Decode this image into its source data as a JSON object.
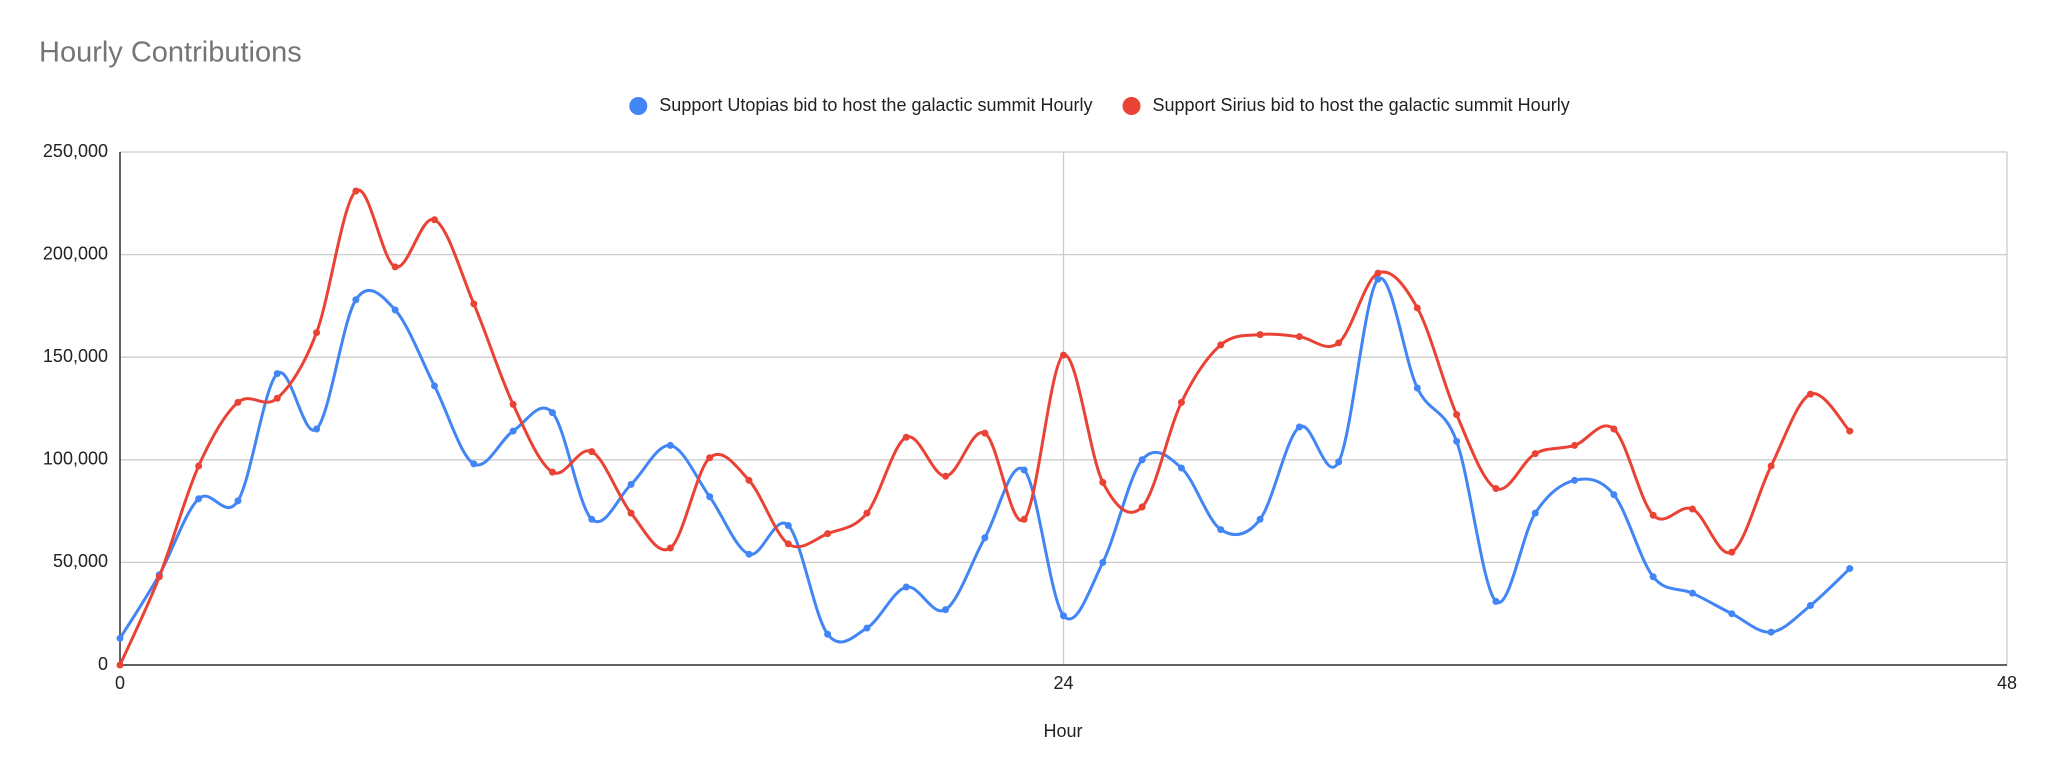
{
  "chart_data": {
    "type": "line",
    "title": "Hourly Contributions",
    "x_label": "Hour",
    "x": [
      0,
      1,
      2,
      3,
      4,
      5,
      6,
      7,
      8,
      9,
      10,
      11,
      12,
      13,
      14,
      15,
      16,
      17,
      18,
      19,
      20,
      21,
      22,
      23,
      24,
      25,
      26,
      27,
      28,
      29,
      30,
      31,
      32,
      33,
      34,
      35,
      36,
      37,
      38,
      39,
      40,
      41,
      42,
      43,
      44
    ],
    "series": [
      {
        "name": "Support Utopias bid to host the galactic summit Hourly",
        "color": "#4285f4",
        "values": [
          13000,
          44000,
          81000,
          80000,
          142000,
          115000,
          178000,
          173000,
          136000,
          98000,
          114000,
          123000,
          71000,
          88000,
          107000,
          82000,
          54000,
          68000,
          15000,
          18000,
          38000,
          27000,
          62000,
          95000,
          24000,
          50000,
          100000,
          96000,
          66000,
          71000,
          116000,
          99000,
          188000,
          135000,
          109000,
          31000,
          74000,
          90000,
          83000,
          43000,
          35000,
          25000,
          16000,
          29000,
          47000
        ]
      },
      {
        "name": "Support Sirius bid to host the galactic summit Hourly",
        "color": "#ea4335",
        "values": [
          0,
          43000,
          97000,
          128000,
          130000,
          162000,
          231000,
          194000,
          217000,
          176000,
          127000,
          94000,
          104000,
          74000,
          57000,
          101000,
          90000,
          59000,
          64000,
          74000,
          111000,
          92000,
          113000,
          71000,
          151000,
          89000,
          77000,
          128000,
          156000,
          161000,
          160000,
          157000,
          191000,
          174000,
          122000,
          86000,
          103000,
          107000,
          115000,
          73000,
          76000,
          55000,
          97000,
          132000,
          114000
        ]
      }
    ],
    "xlim": [
      0,
      48
    ],
    "xticks": [
      0,
      24,
      48
    ],
    "ylim": [
      0,
      250000
    ],
    "yticks": [
      0,
      {
        "value": 50000,
        "label": "50,000"
      },
      {
        "value": 100000,
        "label": "100,000"
      },
      {
        "value": 150000,
        "label": "150,000"
      },
      {
        "value": 200000,
        "label": "200,000"
      },
      {
        "value": 250000,
        "label": "250,000"
      }
    ],
    "grid": true,
    "legend": "top",
    "smooth": true
  }
}
